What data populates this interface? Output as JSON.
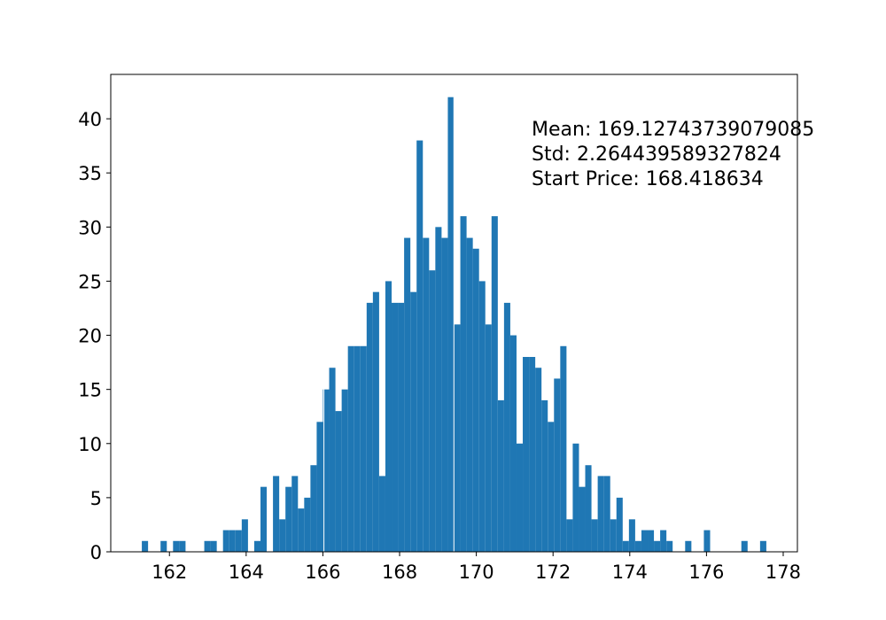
{
  "chart_data": {
    "type": "bar",
    "subtype": "histogram",
    "title": "",
    "xlabel": "",
    "ylabel": "",
    "bar_color": "#1f77b4",
    "xlim": [
      160.47,
      178.37
    ],
    "ylim": [
      0,
      44.1
    ],
    "grid": false,
    "legend": null,
    "bins": {
      "count": 100,
      "start": 161.28,
      "end": 177.56,
      "width": 0.1628
    },
    "values": [
      1,
      0,
      0,
      1,
      0,
      1,
      1,
      0,
      0,
      0,
      1,
      1,
      0,
      2,
      2,
      2,
      3,
      0,
      1,
      6,
      0,
      7,
      3,
      6,
      7,
      4,
      5,
      8,
      12,
      15,
      17,
      13,
      15,
      19,
      19,
      19,
      23,
      24,
      7,
      25,
      23,
      23,
      29,
      24,
      38,
      29,
      26,
      30,
      29,
      42,
      21,
      31,
      29,
      28,
      25,
      21,
      31,
      14,
      23,
      20,
      10,
      18,
      18,
      17,
      14,
      12,
      16,
      19,
      3,
      10,
      6,
      8,
      3,
      7,
      7,
      3,
      5,
      1,
      3,
      1,
      2,
      2,
      1,
      2,
      1,
      0,
      0,
      1,
      0,
      0,
      2,
      0,
      0,
      0,
      0,
      0,
      1,
      0,
      0,
      1
    ],
    "xticks": [
      "162",
      "164",
      "166",
      "168",
      "170",
      "172",
      "174",
      "176",
      "178"
    ],
    "xtick_values": [
      162,
      164,
      166,
      168,
      170,
      172,
      174,
      176,
      178
    ],
    "yticks": [
      "0",
      "5",
      "10",
      "15",
      "20",
      "25",
      "30",
      "35",
      "40"
    ],
    "ytick_values": [
      0,
      5,
      10,
      15,
      20,
      25,
      30,
      35,
      40
    ],
    "annotations": [
      "Mean: 169.12743739079085",
      "Std: 2.264439589327824",
      "Start Price: 168.418634"
    ]
  },
  "annotation": {
    "mean": "Mean: 169.12743739079085",
    "std": "Std: 2.264439589327824",
    "start_price": "Start Price: 168.418634"
  }
}
